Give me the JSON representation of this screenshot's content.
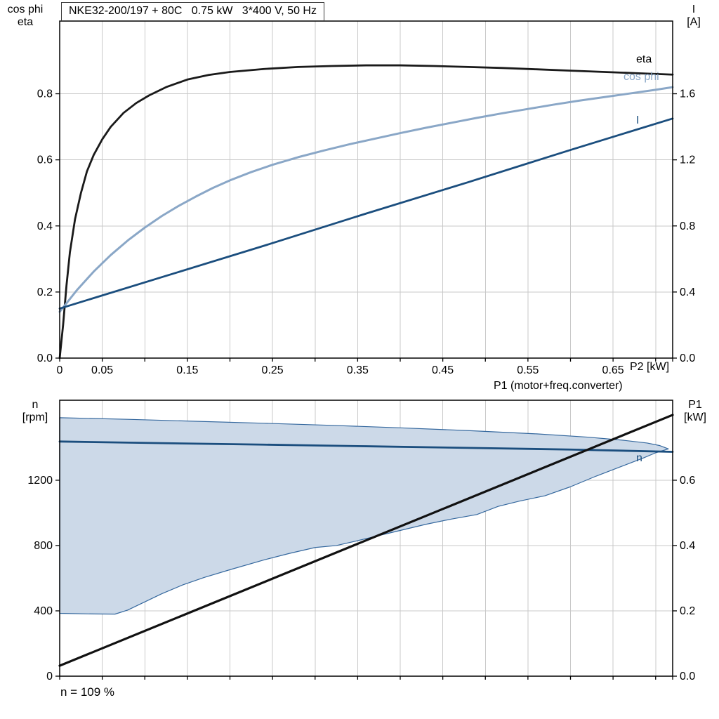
{
  "header": {
    "title": "NKE32-200/197 + 80C   0.75 kW   3*400 V, 50 Hz"
  },
  "footer": {
    "note": "n = 109 %"
  },
  "colors": {
    "eta": "#1a1a1a",
    "cos_phi": "#8aa7c7",
    "current": "#1b4e7e",
    "speed": "#1b4e7e",
    "p1_line": "#111111",
    "band_fill": "#ccd9e8",
    "band_edge": "#35689e",
    "grid": "#c9c9c9",
    "border": "#000000"
  },
  "chart_data": [
    {
      "type": "line",
      "x_axis": {
        "label": "P2 [kW]",
        "range": [
          0,
          0.72
        ],
        "grid_step": 0.05,
        "tick_values": [
          0,
          0.05,
          0.15,
          0.25,
          0.35,
          0.45,
          0.55,
          0.65
        ],
        "tick_labels": [
          "0",
          "0.05",
          "0.15",
          "0.25",
          "0.35",
          "0.45",
          "0.55",
          "0.65"
        ]
      },
      "left_axis": {
        "title1": "cos phi",
        "title2": "eta",
        "range": [
          0,
          1.02
        ],
        "tick_values": [
          0,
          0.2,
          0.4,
          0.6,
          0.8
        ],
        "tick_labels": [
          "0.0",
          "0.2",
          "0.4",
          "0.6",
          "0.8"
        ]
      },
      "right_axis": {
        "title1": "I",
        "title2": "[A]",
        "range": [
          0,
          2.04
        ],
        "tick_values": [
          0,
          0.4,
          0.8,
          1.2,
          1.6
        ],
        "tick_labels": [
          "0.0",
          "0.4",
          "0.8",
          "1.2",
          "1.6"
        ]
      },
      "series": [
        {
          "name": "eta",
          "axis": "left",
          "color": "#1a1a1a",
          "width": 2.8,
          "points": [
            [
              0,
              0
            ],
            [
              0.004,
              0.1
            ],
            [
              0.008,
              0.22
            ],
            [
              0.012,
              0.32
            ],
            [
              0.018,
              0.42
            ],
            [
              0.025,
              0.5
            ],
            [
              0.032,
              0.565
            ],
            [
              0.04,
              0.615
            ],
            [
              0.05,
              0.662
            ],
            [
              0.06,
              0.7
            ],
            [
              0.075,
              0.742
            ],
            [
              0.09,
              0.772
            ],
            [
              0.105,
              0.795
            ],
            [
              0.125,
              0.82
            ],
            [
              0.15,
              0.843
            ],
            [
              0.175,
              0.857
            ],
            [
              0.2,
              0.866
            ],
            [
              0.24,
              0.875
            ],
            [
              0.28,
              0.881
            ],
            [
              0.32,
              0.884
            ],
            [
              0.36,
              0.886
            ],
            [
              0.4,
              0.886
            ],
            [
              0.44,
              0.884
            ],
            [
              0.48,
              0.881
            ],
            [
              0.52,
              0.878
            ],
            [
              0.56,
              0.874
            ],
            [
              0.6,
              0.87
            ],
            [
              0.64,
              0.866
            ],
            [
              0.68,
              0.862
            ],
            [
              0.72,
              0.858
            ]
          ]
        },
        {
          "name": "cos phi",
          "axis": "left",
          "color": "#8aa7c7",
          "width": 3,
          "points": [
            [
              0,
              0.14
            ],
            [
              0.02,
              0.205
            ],
            [
              0.04,
              0.262
            ],
            [
              0.06,
              0.312
            ],
            [
              0.08,
              0.356
            ],
            [
              0.1,
              0.395
            ],
            [
              0.12,
              0.43
            ],
            [
              0.14,
              0.461
            ],
            [
              0.16,
              0.489
            ],
            [
              0.18,
              0.515
            ],
            [
              0.2,
              0.538
            ],
            [
              0.225,
              0.563
            ],
            [
              0.25,
              0.585
            ],
            [
              0.28,
              0.608
            ],
            [
              0.31,
              0.628
            ],
            [
              0.34,
              0.647
            ],
            [
              0.37,
              0.664
            ],
            [
              0.4,
              0.681
            ],
            [
              0.43,
              0.697
            ],
            [
              0.46,
              0.712
            ],
            [
              0.49,
              0.727
            ],
            [
              0.52,
              0.741
            ],
            [
              0.55,
              0.754
            ],
            [
              0.58,
              0.767
            ],
            [
              0.61,
              0.779
            ],
            [
              0.64,
              0.79
            ],
            [
              0.67,
              0.801
            ],
            [
              0.7,
              0.812
            ],
            [
              0.72,
              0.82
            ]
          ]
        },
        {
          "name": "I",
          "axis": "right",
          "color": "#1b4e7e",
          "width": 2.8,
          "points": [
            [
              0,
              0.3
            ],
            [
              0.12,
              0.49
            ],
            [
              0.24,
              0.68
            ],
            [
              0.36,
              0.875
            ],
            [
              0.48,
              1.065
            ],
            [
              0.6,
              1.26
            ],
            [
              0.72,
              1.45
            ]
          ]
        }
      ],
      "series_labels": {
        "eta": "eta",
        "cos_phi": "cos phi",
        "current": "I"
      }
    },
    {
      "type": "line",
      "annotation": "P1 (motor+freq.converter)",
      "x_axis": {
        "label": "",
        "range": [
          0,
          0.72
        ],
        "grid_step": 0.05,
        "tick_values": [],
        "tick_labels": []
      },
      "left_axis": {
        "title1": "n",
        "title2": "[rpm]",
        "range": [
          0,
          1690
        ],
        "tick_values": [
          0,
          400,
          800,
          1200
        ],
        "tick_labels": [
          "0",
          "400",
          "800",
          "1200"
        ]
      },
      "right_axis": {
        "title1": "P1",
        "title2": "[kW]",
        "range": [
          0,
          0.845
        ],
        "tick_values": [
          0,
          0.2,
          0.4,
          0.6
        ],
        "tick_labels": [
          "0.0",
          "0.2",
          "0.4",
          "0.6"
        ]
      },
      "series": [
        {
          "name": "speed range",
          "type": "band",
          "axis": "left",
          "fill": "#ccd9e8",
          "color": "#35689e",
          "width": 1.2,
          "upper": [
            [
              0,
              1583
            ],
            [
              0.08,
              1573
            ],
            [
              0.16,
              1561
            ],
            [
              0.24,
              1549
            ],
            [
              0.32,
              1536
            ],
            [
              0.4,
              1521
            ],
            [
              0.48,
              1504
            ],
            [
              0.56,
              1484
            ],
            [
              0.62,
              1464
            ],
            [
              0.66,
              1446
            ],
            [
              0.69,
              1428
            ],
            [
              0.705,
              1412
            ],
            [
              0.715,
              1392
            ]
          ],
          "lower": [
            [
              0,
              385
            ],
            [
              0.04,
              381
            ],
            [
              0.065,
              380
            ],
            [
              0.08,
              405
            ],
            [
              0.1,
              455
            ],
            [
              0.12,
              505
            ],
            [
              0.145,
              560
            ],
            [
              0.17,
              605
            ],
            [
              0.2,
              652
            ],
            [
              0.24,
              712
            ],
            [
              0.27,
              752
            ],
            [
              0.3,
              788
            ],
            [
              0.325,
              800
            ],
            [
              0.35,
              830
            ],
            [
              0.39,
              880
            ],
            [
              0.43,
              930
            ],
            [
              0.46,
              962
            ],
            [
              0.49,
              990
            ],
            [
              0.515,
              1040
            ],
            [
              0.54,
              1072
            ],
            [
              0.57,
              1105
            ],
            [
              0.6,
              1160
            ],
            [
              0.63,
              1225
            ],
            [
              0.66,
              1285
            ],
            [
              0.685,
              1335
            ],
            [
              0.7,
              1368
            ],
            [
              0.715,
              1392
            ]
          ]
        },
        {
          "name": "n",
          "axis": "left",
          "color": "#1b4e7e",
          "width": 2.8,
          "points": [
            [
              0,
              1437
            ],
            [
              0.12,
              1427
            ],
            [
              0.24,
              1418
            ],
            [
              0.36,
              1408
            ],
            [
              0.48,
              1398
            ],
            [
              0.6,
              1388
            ],
            [
              0.72,
              1374
            ]
          ]
        },
        {
          "name": "P1",
          "axis": "right",
          "color": "#111111",
          "width": 3.2,
          "points": [
            [
              0,
              0.032
            ],
            [
              0.72,
              0.8
            ]
          ]
        }
      ],
      "series_labels": {
        "speed": "n"
      }
    }
  ]
}
